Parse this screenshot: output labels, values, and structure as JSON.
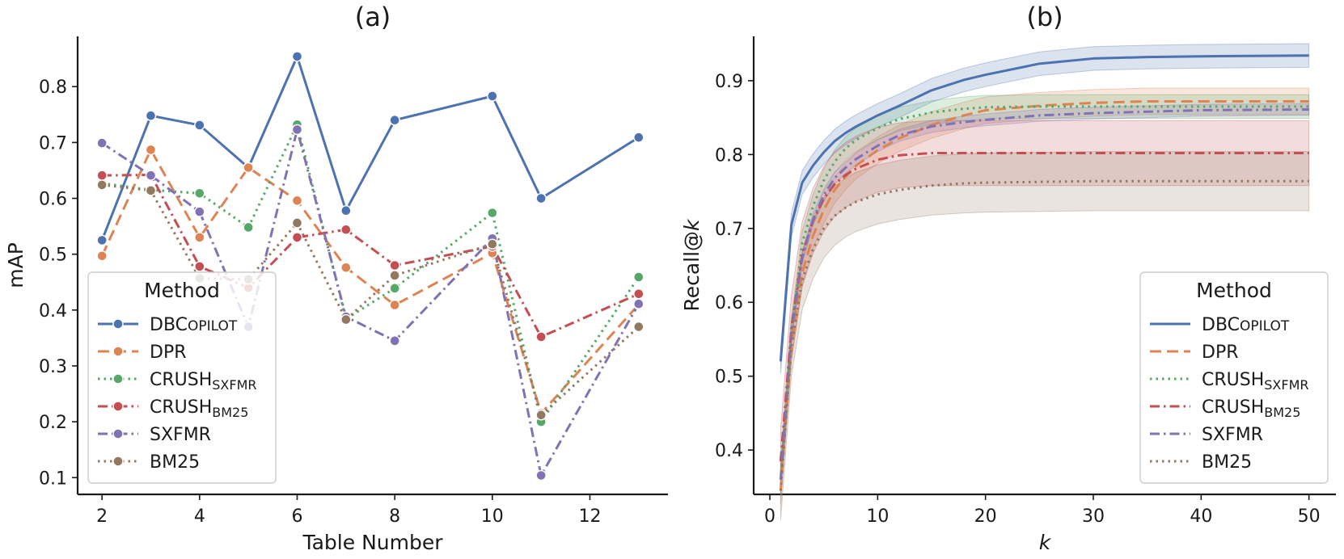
{
  "chart_data": [
    {
      "type": "line",
      "panel_label": "(a)",
      "xlabel": "Table Number",
      "ylabel": "mAP",
      "xlim": [
        1.5,
        13.6
      ],
      "ylim": [
        0.07,
        0.89
      ],
      "xticks": [
        2,
        4,
        6,
        8,
        10,
        12
      ],
      "yticks": [
        0.1,
        0.2,
        0.3,
        0.4,
        0.5,
        0.6,
        0.7,
        0.8
      ],
      "x": [
        2,
        3,
        4,
        5,
        6,
        7,
        8,
        10,
        11,
        13
      ],
      "legend": {
        "title": "Method",
        "position": "lower-left"
      },
      "series": [
        {
          "name": "DBCopilot",
          "display": [
            "DBC",
            "OPILOT",
            ""
          ],
          "color": "#4c72b0",
          "dash": "solid",
          "markers": true,
          "values": [
            0.525,
            0.748,
            0.731,
            0.655,
            0.854,
            0.578,
            0.74,
            0.783,
            0.6,
            0.709
          ]
        },
        {
          "name": "DPR",
          "display": [
            "DPR",
            "",
            ""
          ],
          "color": "#dd8452",
          "dash": "dashed",
          "markers": true,
          "values": [
            0.497,
            0.687,
            0.53,
            0.655,
            0.596,
            0.476,
            0.409,
            0.502,
            0.215,
            0.41
          ]
        },
        {
          "name": "CRUSH_SXFMR",
          "display": [
            "CRUSH",
            "",
            "SXFMR"
          ],
          "color": "#55a868",
          "dash": "dotted",
          "markers": true,
          "values": [
            0.627,
            0.615,
            0.609,
            0.548,
            0.732,
            0.384,
            0.439,
            0.574,
            0.2,
            0.459
          ]
        },
        {
          "name": "CRUSH_BM25",
          "display": [
            "CRUSH",
            "",
            "BM25"
          ],
          "color": "#c44e52",
          "dash": "dashdot",
          "markers": true,
          "values": [
            0.641,
            0.642,
            0.478,
            0.44,
            0.53,
            0.544,
            0.48,
            0.514,
            0.352,
            0.429
          ]
        },
        {
          "name": "SXFMR",
          "display": [
            "SXFMR",
            "",
            ""
          ],
          "color": "#8172b3",
          "dash": "dashdot",
          "markers": true,
          "values": [
            0.699,
            0.641,
            0.576,
            0.37,
            0.723,
            0.388,
            0.345,
            0.528,
            0.104,
            0.411
          ]
        },
        {
          "name": "BM25",
          "display": [
            "BM25",
            "",
            ""
          ],
          "color": "#937860",
          "dash": "dotted",
          "markers": true,
          "values": [
            0.624,
            0.614,
            0.457,
            0.455,
            0.556,
            0.383,
            0.462,
            0.518,
            0.212,
            0.37
          ]
        }
      ]
    },
    {
      "type": "line",
      "panel_label": "(b)",
      "xlabel": "k",
      "ylabel_parts": [
        "Recall@",
        "k"
      ],
      "xlim": [
        -1.5,
        52.5
      ],
      "ylim": [
        0.34,
        0.96
      ],
      "xticks": [
        0,
        10,
        20,
        30,
        40,
        50
      ],
      "yticks": [
        0.4,
        0.5,
        0.6,
        0.7,
        0.8,
        0.9
      ],
      "x": [
        1,
        2,
        3,
        4,
        5,
        6,
        7,
        8,
        10,
        12,
        15,
        18,
        20,
        25,
        30,
        35,
        40,
        50
      ],
      "legend": {
        "title": "Method",
        "position": "lower-right"
      },
      "series": [
        {
          "name": "DBCopilot",
          "display": [
            "DBC",
            "OPILOT",
            ""
          ],
          "color": "#4c72b0",
          "dash": "solid",
          "markers": false,
          "values": [
            0.52,
            0.705,
            0.762,
            0.785,
            0.803,
            0.818,
            0.829,
            0.838,
            0.853,
            0.866,
            0.887,
            0.901,
            0.908,
            0.923,
            0.93,
            0.932,
            0.933,
            0.934
          ],
          "band": 0.016
        },
        {
          "name": "DPR",
          "display": [
            "DPR",
            "",
            ""
          ],
          "color": "#dd8452",
          "dash": "dashed",
          "markers": false,
          "values": [
            0.345,
            0.54,
            0.64,
            0.69,
            0.725,
            0.752,
            0.77,
            0.785,
            0.806,
            0.822,
            0.84,
            0.853,
            0.86,
            0.866,
            0.87,
            0.872,
            0.872,
            0.872
          ],
          "band": 0.018
        },
        {
          "name": "CRUSH_SXFMR",
          "display": [
            "CRUSH",
            "",
            "SXFMR"
          ],
          "color": "#55a868",
          "dash": "dotted",
          "markers": false,
          "values": [
            0.36,
            0.56,
            0.68,
            0.73,
            0.765,
            0.79,
            0.808,
            0.82,
            0.836,
            0.848,
            0.857,
            0.862,
            0.864,
            0.865,
            0.865,
            0.865,
            0.865,
            0.865
          ],
          "band": 0.016
        },
        {
          "name": "CRUSH_BM25",
          "display": [
            "CRUSH",
            "",
            "BM25"
          ],
          "color": "#c44e52",
          "dash": "dashdot",
          "markers": false,
          "values": [
            0.385,
            0.565,
            0.665,
            0.71,
            0.74,
            0.76,
            0.772,
            0.781,
            0.793,
            0.799,
            0.802,
            0.802,
            0.802,
            0.802,
            0.802,
            0.802,
            0.802,
            0.802
          ],
          "band": 0.044
        },
        {
          "name": "SXFMR",
          "display": [
            "SXFMR",
            "",
            ""
          ],
          "color": "#8172b3",
          "dash": "dashdot",
          "markers": false,
          "values": [
            0.36,
            0.56,
            0.66,
            0.712,
            0.745,
            0.768,
            0.782,
            0.794,
            0.812,
            0.826,
            0.838,
            0.844,
            0.847,
            0.853,
            0.856,
            0.858,
            0.86,
            0.861
          ],
          "band": 0.008
        },
        {
          "name": "BM25",
          "display": [
            "BM25",
            "",
            ""
          ],
          "color": "#937860",
          "dash": "dotted",
          "markers": false,
          "values": [
            0.345,
            0.54,
            0.63,
            0.672,
            0.7,
            0.717,
            0.728,
            0.736,
            0.746,
            0.752,
            0.758,
            0.761,
            0.762,
            0.763,
            0.764,
            0.764,
            0.764,
            0.764
          ],
          "band": 0.04
        }
      ]
    }
  ]
}
